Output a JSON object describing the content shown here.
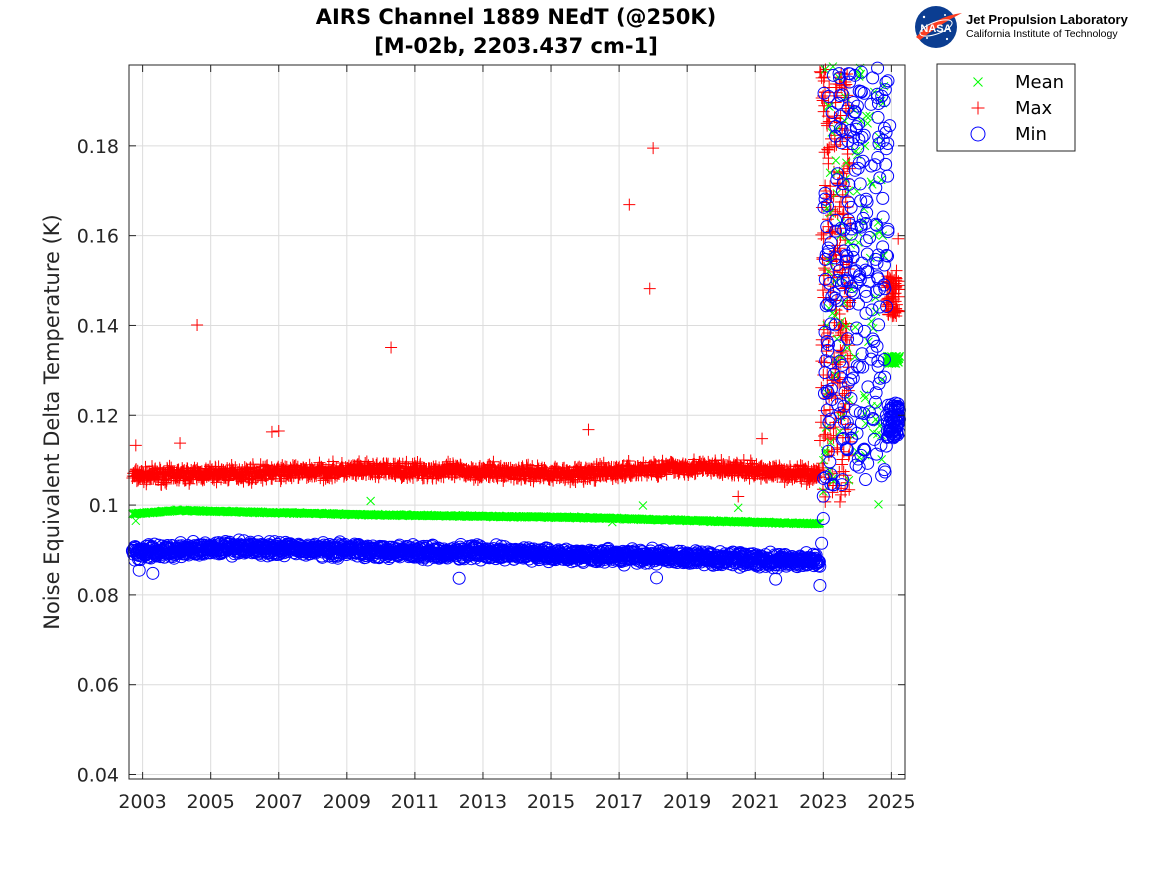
{
  "logo": {
    "badge_text": "NASA",
    "line1": "Jet Propulsion Laboratory",
    "line2": "California Institute of Technology"
  },
  "chart_data": {
    "type": "scatter",
    "title": "AIRS Channel 1889 NEdT (@250K)",
    "subtitle": "[M-02b, 2203.437 cm-1]",
    "xlabel": "",
    "ylabel": "Noise Equivalent Delta Temperature (K)",
    "xlim": [
      2002.6,
      2025.4
    ],
    "ylim": [
      0.039,
      0.198
    ],
    "x_ticks": [
      2003,
      2005,
      2007,
      2009,
      2011,
      2013,
      2015,
      2017,
      2019,
      2021,
      2023,
      2025
    ],
    "y_ticks": [
      0.04,
      0.06,
      0.08,
      0.1,
      0.12,
      0.14,
      0.16,
      0.18
    ],
    "y_tick_labels": [
      "0.04",
      "0.06",
      "0.08",
      "0.1",
      "0.12",
      "0.14",
      "0.16",
      "0.18"
    ],
    "grid": true,
    "legend_position": "outside-top-right",
    "series": [
      {
        "name": "Mean",
        "marker": "x",
        "color": "#00ff00",
        "trend": [
          [
            2002.7,
            0.098
          ],
          [
            2004.0,
            0.0988
          ],
          [
            2010.0,
            0.0978
          ],
          [
            2016.0,
            0.0972
          ],
          [
            2022.9,
            0.0958
          ]
        ],
        "outliers": [
          [
            2002.8,
            0.0965
          ],
          [
            2009.7,
            0.1009
          ],
          [
            2016.8,
            0.0962
          ],
          [
            2017.7,
            0.0999
          ],
          [
            2020.5,
            0.0994
          ],
          [
            2023.0,
            0.103
          ],
          [
            2023.0,
            0.11
          ],
          [
            2023.1,
            0.125
          ],
          [
            2023.1,
            0.14
          ],
          [
            2023.15,
            0.152
          ],
          [
            2023.2,
            0.165
          ],
          [
            2023.2,
            0.174
          ],
          [
            2023.25,
            0.183
          ],
          [
            2023.5,
            0.16
          ],
          [
            2023.6,
            0.145
          ],
          [
            2023.7,
            0.135
          ],
          [
            2023.75,
            0.17
          ],
          [
            2023.8,
            0.158
          ],
          [
            2023.9,
            0.188
          ],
          [
            2024.0,
            0.178
          ],
          [
            2024.1,
            0.196
          ],
          [
            2024.2,
            0.166
          ],
          [
            2024.3,
            0.185
          ],
          [
            2024.4,
            0.172
          ],
          [
            2024.5,
            0.192
          ],
          [
            2024.6,
            0.18
          ],
          [
            2024.7,
            0.19
          ],
          [
            2024.9,
            0.1328
          ],
          [
            2025.0,
            0.1322
          ],
          [
            2025.1,
            0.1325
          ],
          [
            2025.2,
            0.1318
          ]
        ],
        "jump": {
          "x_range": [
            2023.0,
            2024.8
          ],
          "y_range": [
            0.1,
            0.198
          ]
        },
        "tail": {
          "x_range": [
            2024.85,
            2025.25
          ],
          "y_range": [
            0.1315,
            0.1332
          ]
        }
      },
      {
        "name": "Max",
        "marker": "+",
        "color": "#ff0000",
        "trend": [
          [
            2002.7,
            0.1065
          ],
          [
            2010.0,
            0.1078
          ],
          [
            2016.0,
            0.107
          ],
          [
            2019.0,
            0.1085
          ],
          [
            2022.9,
            0.1068
          ]
        ],
        "spread": 0.0025,
        "outliers": [
          [
            2002.8,
            0.1133
          ],
          [
            2004.1,
            0.1138
          ],
          [
            2004.6,
            0.1401
          ],
          [
            2006.8,
            0.1163
          ],
          [
            2007.0,
            0.1165
          ],
          [
            2010.3,
            0.1351
          ],
          [
            2016.1,
            0.1168
          ],
          [
            2017.3,
            0.1669
          ],
          [
            2017.9,
            0.1482
          ],
          [
            2018.0,
            0.1795
          ],
          [
            2020.5,
            0.1019
          ],
          [
            2021.2,
            0.1148
          ],
          [
            2022.9,
            0.1965
          ],
          [
            2023.05,
            0.192
          ],
          [
            2023.1,
            0.185
          ],
          [
            2023.15,
            0.176
          ],
          [
            2023.15,
            0.162
          ],
          [
            2023.2,
            0.171
          ],
          [
            2023.2,
            0.117
          ],
          [
            2023.25,
            0.125
          ],
          [
            2023.3,
            0.115
          ],
          [
            2023.5,
            0.181
          ],
          [
            2023.6,
            0.165
          ],
          [
            2023.7,
            0.196
          ],
          [
            2023.75,
            0.189
          ],
          [
            2025.2,
            0.1593
          ],
          [
            2025.15,
            0.1522
          ]
        ],
        "jump": {
          "x_range": [
            2022.9,
            2023.8
          ],
          "y_range": [
            0.1,
            0.198
          ]
        },
        "tail": {
          "x_range": [
            2024.85,
            2025.25
          ],
          "y_range": [
            0.142,
            0.151
          ]
        }
      },
      {
        "name": "Min",
        "marker": "o",
        "color": "#0000ff",
        "trend": [
          [
            2002.7,
            0.0895
          ],
          [
            2006.0,
            0.0905
          ],
          [
            2012.0,
            0.0895
          ],
          [
            2018.0,
            0.0885
          ],
          [
            2022.9,
            0.0875
          ]
        ],
        "spread": 0.0022,
        "outliers": [
          [
            2002.9,
            0.0855
          ],
          [
            2003.3,
            0.0848
          ],
          [
            2012.3,
            0.0837
          ],
          [
            2018.1,
            0.0838
          ],
          [
            2021.6,
            0.0835
          ],
          [
            2022.9,
            0.0821
          ],
          [
            2022.95,
            0.0915
          ],
          [
            2023.0,
            0.097
          ],
          [
            2023.0,
            0.102
          ],
          [
            2023.05,
            0.1295
          ],
          [
            2023.05,
            0.1385
          ],
          [
            2023.1,
            0.162
          ],
          [
            2023.15,
            0.1565
          ],
          [
            2023.2,
            0.1445
          ],
          [
            2023.25,
            0.1235
          ],
          [
            2023.3,
            0.1045
          ],
          [
            2023.7,
            0.1125
          ],
          [
            2023.8,
            0.117
          ],
          [
            2024.0,
            0.131
          ],
          [
            2024.4,
            0.1325
          ],
          [
            2024.8,
            0.1285
          ],
          [
            2024.9,
            0.1945
          ],
          [
            2024.95,
            0.1845
          ]
        ],
        "jump": {
          "x_range": [
            2023.0,
            2024.9
          ],
          "y_range": [
            0.104,
            0.198
          ]
        },
        "tail": {
          "x_range": [
            2024.85,
            2025.25
          ],
          "y_range": [
            0.115,
            0.123
          ]
        }
      }
    ]
  }
}
